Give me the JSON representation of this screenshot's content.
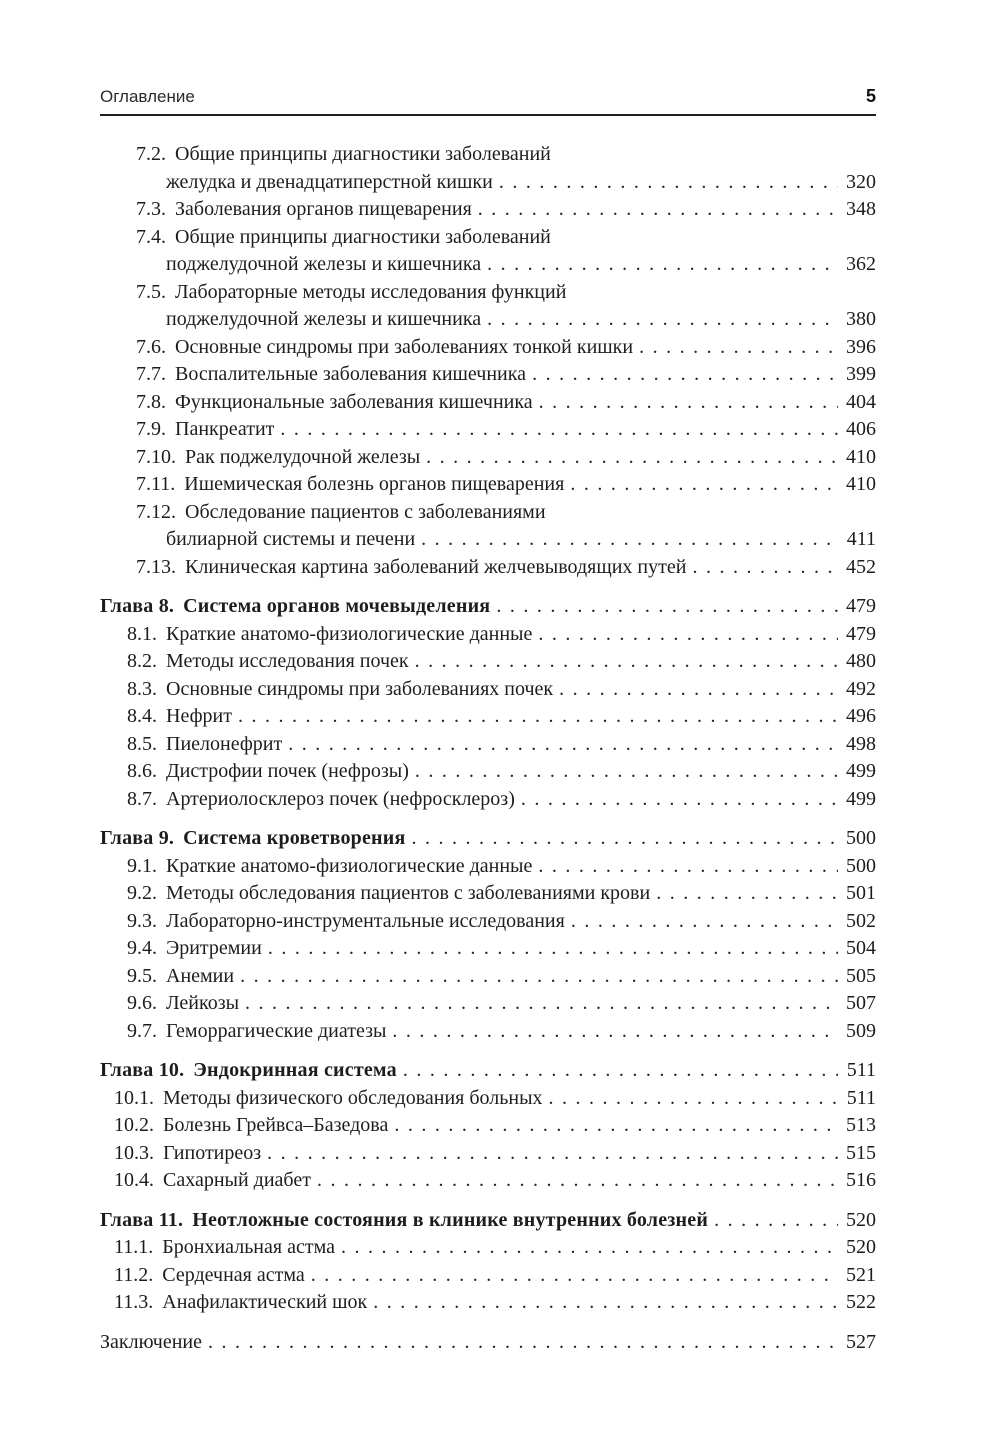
{
  "page": {
    "header": {
      "running_title": "Оглавление",
      "page_number": "5"
    },
    "toc": {
      "entries": [
        {
          "type": "section",
          "number": "7.2.",
          "title": "Общие принципы диагностики заболеваний",
          "title2": "желудка и двенадцатиперстной кишки",
          "page": "320"
        },
        {
          "type": "section",
          "number": "7.3.",
          "title": "Заболевания органов пищеварения",
          "page": "348"
        },
        {
          "type": "section",
          "number": "7.4.",
          "title": "Общие принципы диагностики заболеваний",
          "title2": "поджелудочной железы и кишечника",
          "page": "362"
        },
        {
          "type": "section",
          "number": "7.5.",
          "title": "Лабораторные методы исследования функций",
          "title2": "поджелудочной железы и кишечника",
          "page": "380"
        },
        {
          "type": "section",
          "number": "7.6.",
          "title": "Основные синдромы при заболеваниях тонкой кишки",
          "page": "396"
        },
        {
          "type": "section",
          "number": "7.7.",
          "title": "Воспалительные заболевания кишечника",
          "page": "399"
        },
        {
          "type": "section",
          "number": "7.8.",
          "title": "Функциональные заболевания кишечника",
          "page": "404"
        },
        {
          "type": "section",
          "number": "7.9.",
          "title": "Панкреатит",
          "page": "406"
        },
        {
          "type": "section",
          "number": "7.10.",
          "title": "Рак поджелудочной железы",
          "page": "410"
        },
        {
          "type": "section",
          "number": "7.11.",
          "title": "Ишемическая болезнь органов пищеварения",
          "page": "410"
        },
        {
          "type": "section",
          "number": "7.12.",
          "title": "Обследование пациентов с заболеваниями",
          "title2": "билиарной системы и печени",
          "page": "411"
        },
        {
          "type": "section",
          "number": "7.13.",
          "title": "Клиническая картина заболеваний желчевыводящих путей",
          "page": "452"
        },
        {
          "type": "chapter",
          "number": "Глава 8.",
          "title": "Система органов мочевыделения",
          "page": "479"
        },
        {
          "type": "section",
          "number": "8.1.",
          "title": "Краткие анатомо-физиологические данные",
          "page": "479"
        },
        {
          "type": "section",
          "number": "8.2.",
          "title": "Методы исследования почек",
          "page": "480"
        },
        {
          "type": "section",
          "number": "8.3.",
          "title": "Основные синдромы при заболеваниях почек",
          "page": "492"
        },
        {
          "type": "section",
          "number": "8.4.",
          "title": "Нефрит",
          "page": "496"
        },
        {
          "type": "section",
          "number": "8.5.",
          "title": "Пиелонефрит",
          "page": "498"
        },
        {
          "type": "section",
          "number": "8.6.",
          "title": "Дистрофии почек (нефрозы)",
          "page": "499"
        },
        {
          "type": "section",
          "number": "8.7.",
          "title": "Артериолосклероз почек (нефросклероз)",
          "page": "499"
        },
        {
          "type": "chapter",
          "number": "Глава 9.",
          "title": "Система кроветворения",
          "page": "500"
        },
        {
          "type": "section",
          "number": "9.1.",
          "title": "Краткие анатомо-физиологические данные",
          "page": "500"
        },
        {
          "type": "section",
          "number": "9.2.",
          "title": "Методы обследования пациентов с заболеваниями крови",
          "page": "501"
        },
        {
          "type": "section",
          "number": "9.3.",
          "title": "Лабораторно-инструментальные исследования",
          "page": "502"
        },
        {
          "type": "section",
          "number": "9.4.",
          "title": "Эритремии",
          "page": "504"
        },
        {
          "type": "section",
          "number": "9.5.",
          "title": "Анемии",
          "page": "505"
        },
        {
          "type": "section",
          "number": "9.6.",
          "title": "Лейкозы",
          "page": "507"
        },
        {
          "type": "section",
          "number": "9.7.",
          "title": "Геморрагические диатезы",
          "page": "509"
        },
        {
          "type": "chapter",
          "number": "Глава 10.",
          "title": "Эндокринная система",
          "page": "511"
        },
        {
          "type": "section",
          "number": "10.1.",
          "title": "Методы физического обследования больных",
          "page": "511"
        },
        {
          "type": "section",
          "number": "10.2.",
          "title": "Болезнь Грейвса–Базедова",
          "page": "513"
        },
        {
          "type": "section",
          "number": "10.3.",
          "title": "Гипотиреоз",
          "page": "515"
        },
        {
          "type": "section",
          "number": "10.4.",
          "title": "Сахарный диабет",
          "page": "516"
        },
        {
          "type": "chapter",
          "number": "Глава 11.",
          "title": "Неотложные состояния в клинике внутренних болезней",
          "page": "520"
        },
        {
          "type": "section",
          "number": "11.1.",
          "title": "Бронхиальная астма",
          "page": "520"
        },
        {
          "type": "section",
          "number": "11.2.",
          "title": "Сердечная астма",
          "page": "521"
        },
        {
          "type": "section",
          "number": "11.3.",
          "title": "Анафилактический шок",
          "page": "522"
        },
        {
          "type": "plain",
          "title": "Заключение",
          "page": "527"
        }
      ]
    }
  }
}
